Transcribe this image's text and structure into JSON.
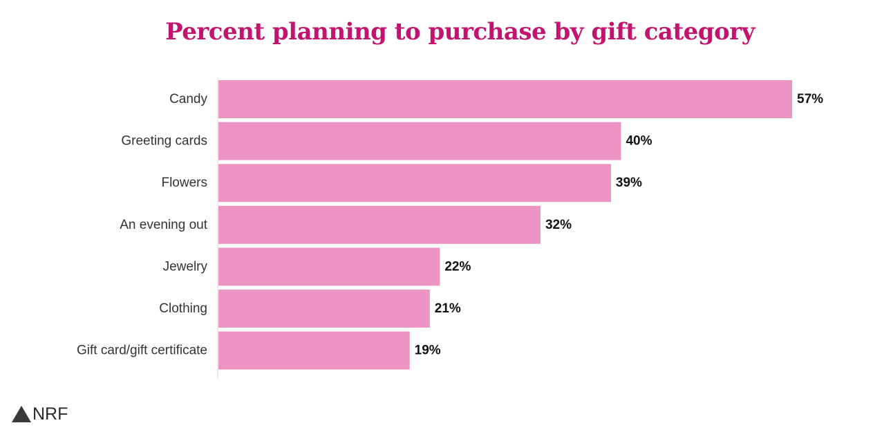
{
  "chart_data": {
    "type": "bar",
    "orientation": "horizontal",
    "title": "Percent planning to purchase by gift category",
    "categories": [
      "Candy",
      "Greeting cards",
      "Flowers",
      "An evening out",
      "Jewelry",
      "Clothing",
      "Gift card/gift certificate"
    ],
    "values": [
      57,
      40,
      39,
      32,
      22,
      21,
      19
    ],
    "value_labels": [
      "57%",
      "40%",
      "39%",
      "32%",
      "22%",
      "21%",
      "19%"
    ],
    "xlabel": "",
    "ylabel": "",
    "xlim": [
      0,
      57
    ],
    "grid": false,
    "legend": "none"
  },
  "colors": {
    "title": "#c2136e",
    "bar": "#ec95c4",
    "axis": "#e6e6e6",
    "logo": "#3a3a3a"
  },
  "logo": {
    "text": "NRF",
    "icon": "triangle-icon"
  }
}
